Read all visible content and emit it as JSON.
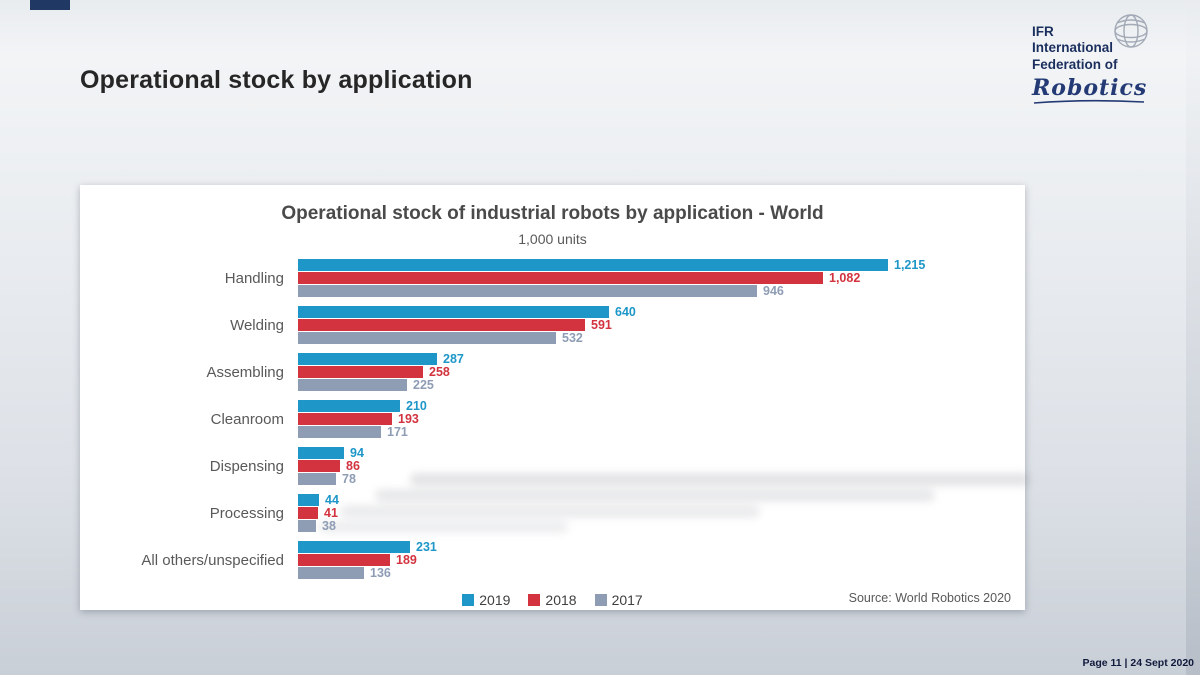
{
  "slide": {
    "title": "Operational stock by application",
    "footer": "Page 11 |  24 Sept 2020"
  },
  "logo": {
    "line1": "IFR",
    "line2": "International",
    "line3": "Federation of",
    "script": "Robotics"
  },
  "chart_data": {
    "type": "bar",
    "orientation": "horizontal",
    "title": "Operational stock of industrial robots by application - World",
    "subtitle": "1,000 units",
    "categories": [
      "Handling",
      "Welding",
      "Assembling",
      "Cleanroom",
      "Dispensing",
      "Processing",
      "All others/unspecified"
    ],
    "series": [
      {
        "name": "2019",
        "color": "#1e96c8",
        "values": [
          1215,
          640,
          287,
          210,
          94,
          44,
          231
        ],
        "labels": [
          "1,215",
          "640",
          "287",
          "210",
          "94",
          "44",
          "231"
        ]
      },
      {
        "name": "2018",
        "color": "#d2333e",
        "values": [
          1082,
          591,
          258,
          193,
          86,
          41,
          189
        ],
        "labels": [
          "1,082",
          "591",
          "258",
          "193",
          "86",
          "41",
          "189"
        ]
      },
      {
        "name": "2017",
        "color": "#8e9cb4",
        "values": [
          946,
          532,
          225,
          171,
          78,
          38,
          136
        ],
        "labels": [
          "946",
          "532",
          "225",
          "171",
          "78",
          "38",
          "136"
        ]
      }
    ],
    "xlim": [
      0,
      1250
    ],
    "grid": false,
    "legend": [
      "2019",
      "2018",
      "2017"
    ],
    "legend_position": "bottom",
    "source": "Source: World Robotics 2020"
  }
}
